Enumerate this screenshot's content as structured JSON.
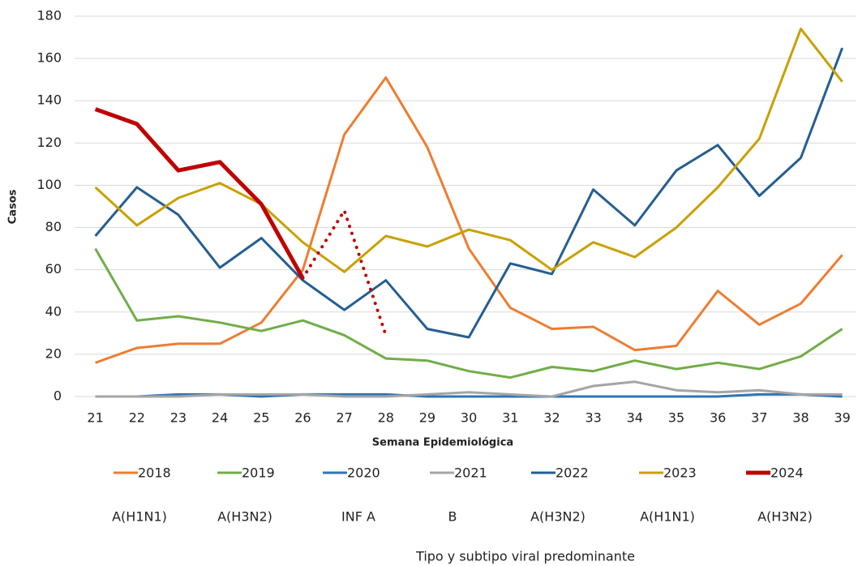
{
  "chart_data": {
    "type": "line",
    "y_label": "Casos",
    "x_label": "Semana Epidemiológica",
    "footer": "Tipo y subtipo viral predominante",
    "subtypes": [
      "A(H1N1)",
      "A(H3N2)",
      "INF A",
      "B",
      "A(H3N2)",
      "A(H1N1)",
      "A(H3N2)"
    ],
    "categories": [
      21,
      22,
      23,
      24,
      25,
      26,
      27,
      28,
      29,
      30,
      31,
      32,
      33,
      34,
      35,
      36,
      37,
      38,
      39
    ],
    "ylim": [
      0,
      180
    ],
    "yticks": [
      0,
      20,
      40,
      60,
      80,
      100,
      120,
      140,
      160,
      180
    ],
    "grid": true,
    "series": [
      {
        "name": "2018",
        "color": "#ED7D31",
        "width": 3,
        "values": [
          16,
          23,
          25,
          25,
          35,
          60,
          124,
          151,
          118,
          70,
          42,
          32,
          33,
          22,
          24,
          50,
          34,
          44,
          67
        ]
      },
      {
        "name": "2019",
        "color": "#70AD47",
        "width": 3,
        "values": [
          70,
          36,
          38,
          35,
          31,
          36,
          29,
          18,
          17,
          12,
          9,
          14,
          12,
          17,
          13,
          16,
          13,
          19,
          32
        ]
      },
      {
        "name": "2020",
        "color": "#2E75B6",
        "width": 3,
        "values": [
          0,
          0,
          1,
          1,
          0,
          1,
          1,
          1,
          0,
          0,
          0,
          0,
          0,
          0,
          0,
          0,
          1,
          1,
          0
        ]
      },
      {
        "name": "2021",
        "color": "#A5A5A5",
        "width": 3,
        "values": [
          0,
          0,
          0,
          1,
          1,
          1,
          0,
          0,
          1,
          2,
          1,
          0,
          5,
          7,
          3,
          2,
          3,
          1,
          1
        ]
      },
      {
        "name": "2022",
        "color": "#255E91",
        "width": 3,
        "values": [
          76,
          99,
          86,
          61,
          75,
          55,
          41,
          55,
          32,
          28,
          63,
          58,
          98,
          81,
          107,
          119,
          95,
          113,
          165
        ]
      },
      {
        "name": "2023",
        "color": "#C9A000",
        "width": 3,
        "values": [
          99,
          81,
          94,
          101,
          91,
          73,
          59,
          76,
          71,
          79,
          74,
          60,
          73,
          66,
          80,
          99,
          122,
          174,
          149
        ]
      },
      {
        "name": "2024",
        "color": "#C00000",
        "width": 5,
        "values": [
          136,
          129,
          107,
          111,
          91,
          56,
          null,
          null,
          null,
          null,
          null,
          null,
          null,
          null,
          null,
          null,
          null,
          null,
          null
        ],
        "dotted_values": [
          null,
          null,
          null,
          null,
          null,
          56,
          88,
          29,
          null,
          null,
          null,
          null,
          null,
          null,
          null,
          null,
          null,
          null,
          null
        ]
      }
    ]
  }
}
